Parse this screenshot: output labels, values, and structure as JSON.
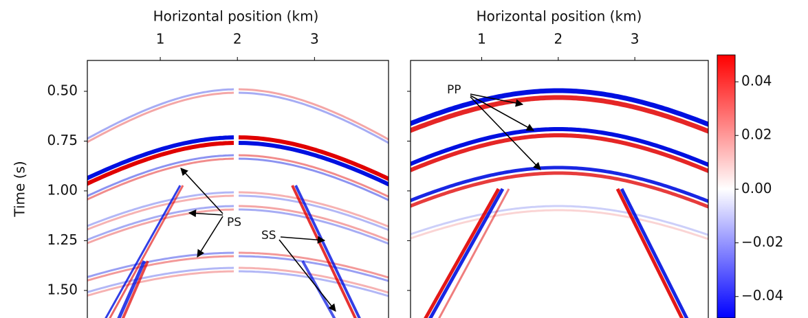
{
  "chart_data": {
    "type": "image",
    "ylabel": "Time (s)",
    "ylim": [
      1.628,
      0.345
    ],
    "yticks": [
      {
        "value": 0.5,
        "label": "0.50"
      },
      {
        "value": 0.75,
        "label": "0.75"
      },
      {
        "value": 1.0,
        "label": "1.00"
      },
      {
        "value": 1.25,
        "label": "1.25"
      },
      {
        "value": 1.5,
        "label": "1.50"
      }
    ],
    "panels": [
      {
        "xlabel": "Horizontal position (km)",
        "xlim": [
          0.054,
          3.96
        ],
        "xticks": [
          1,
          2,
          3
        ],
        "annotations": [
          "PS",
          "SS"
        ]
      },
      {
        "xlabel": "Horizontal position (km)",
        "xlim": [
          0.07,
          3.96
        ],
        "xticks": [
          1,
          2,
          3
        ],
        "annotations": [
          "PP"
        ]
      }
    ],
    "colorbar": {
      "lim": [
        -0.048,
        0.05
      ],
      "ticks": [
        {
          "value": 0.04,
          "label": "0.04"
        },
        {
          "value": 0.02,
          "label": "0.02"
        },
        {
          "value": 0.0,
          "label": "0.00"
        },
        {
          "value": -0.02,
          "label": "−0.02"
        },
        {
          "value": -0.04,
          "label": "−0.04"
        }
      ],
      "colors": [
        "#0000ff",
        "#ffffff",
        "#ff0000"
      ]
    }
  }
}
